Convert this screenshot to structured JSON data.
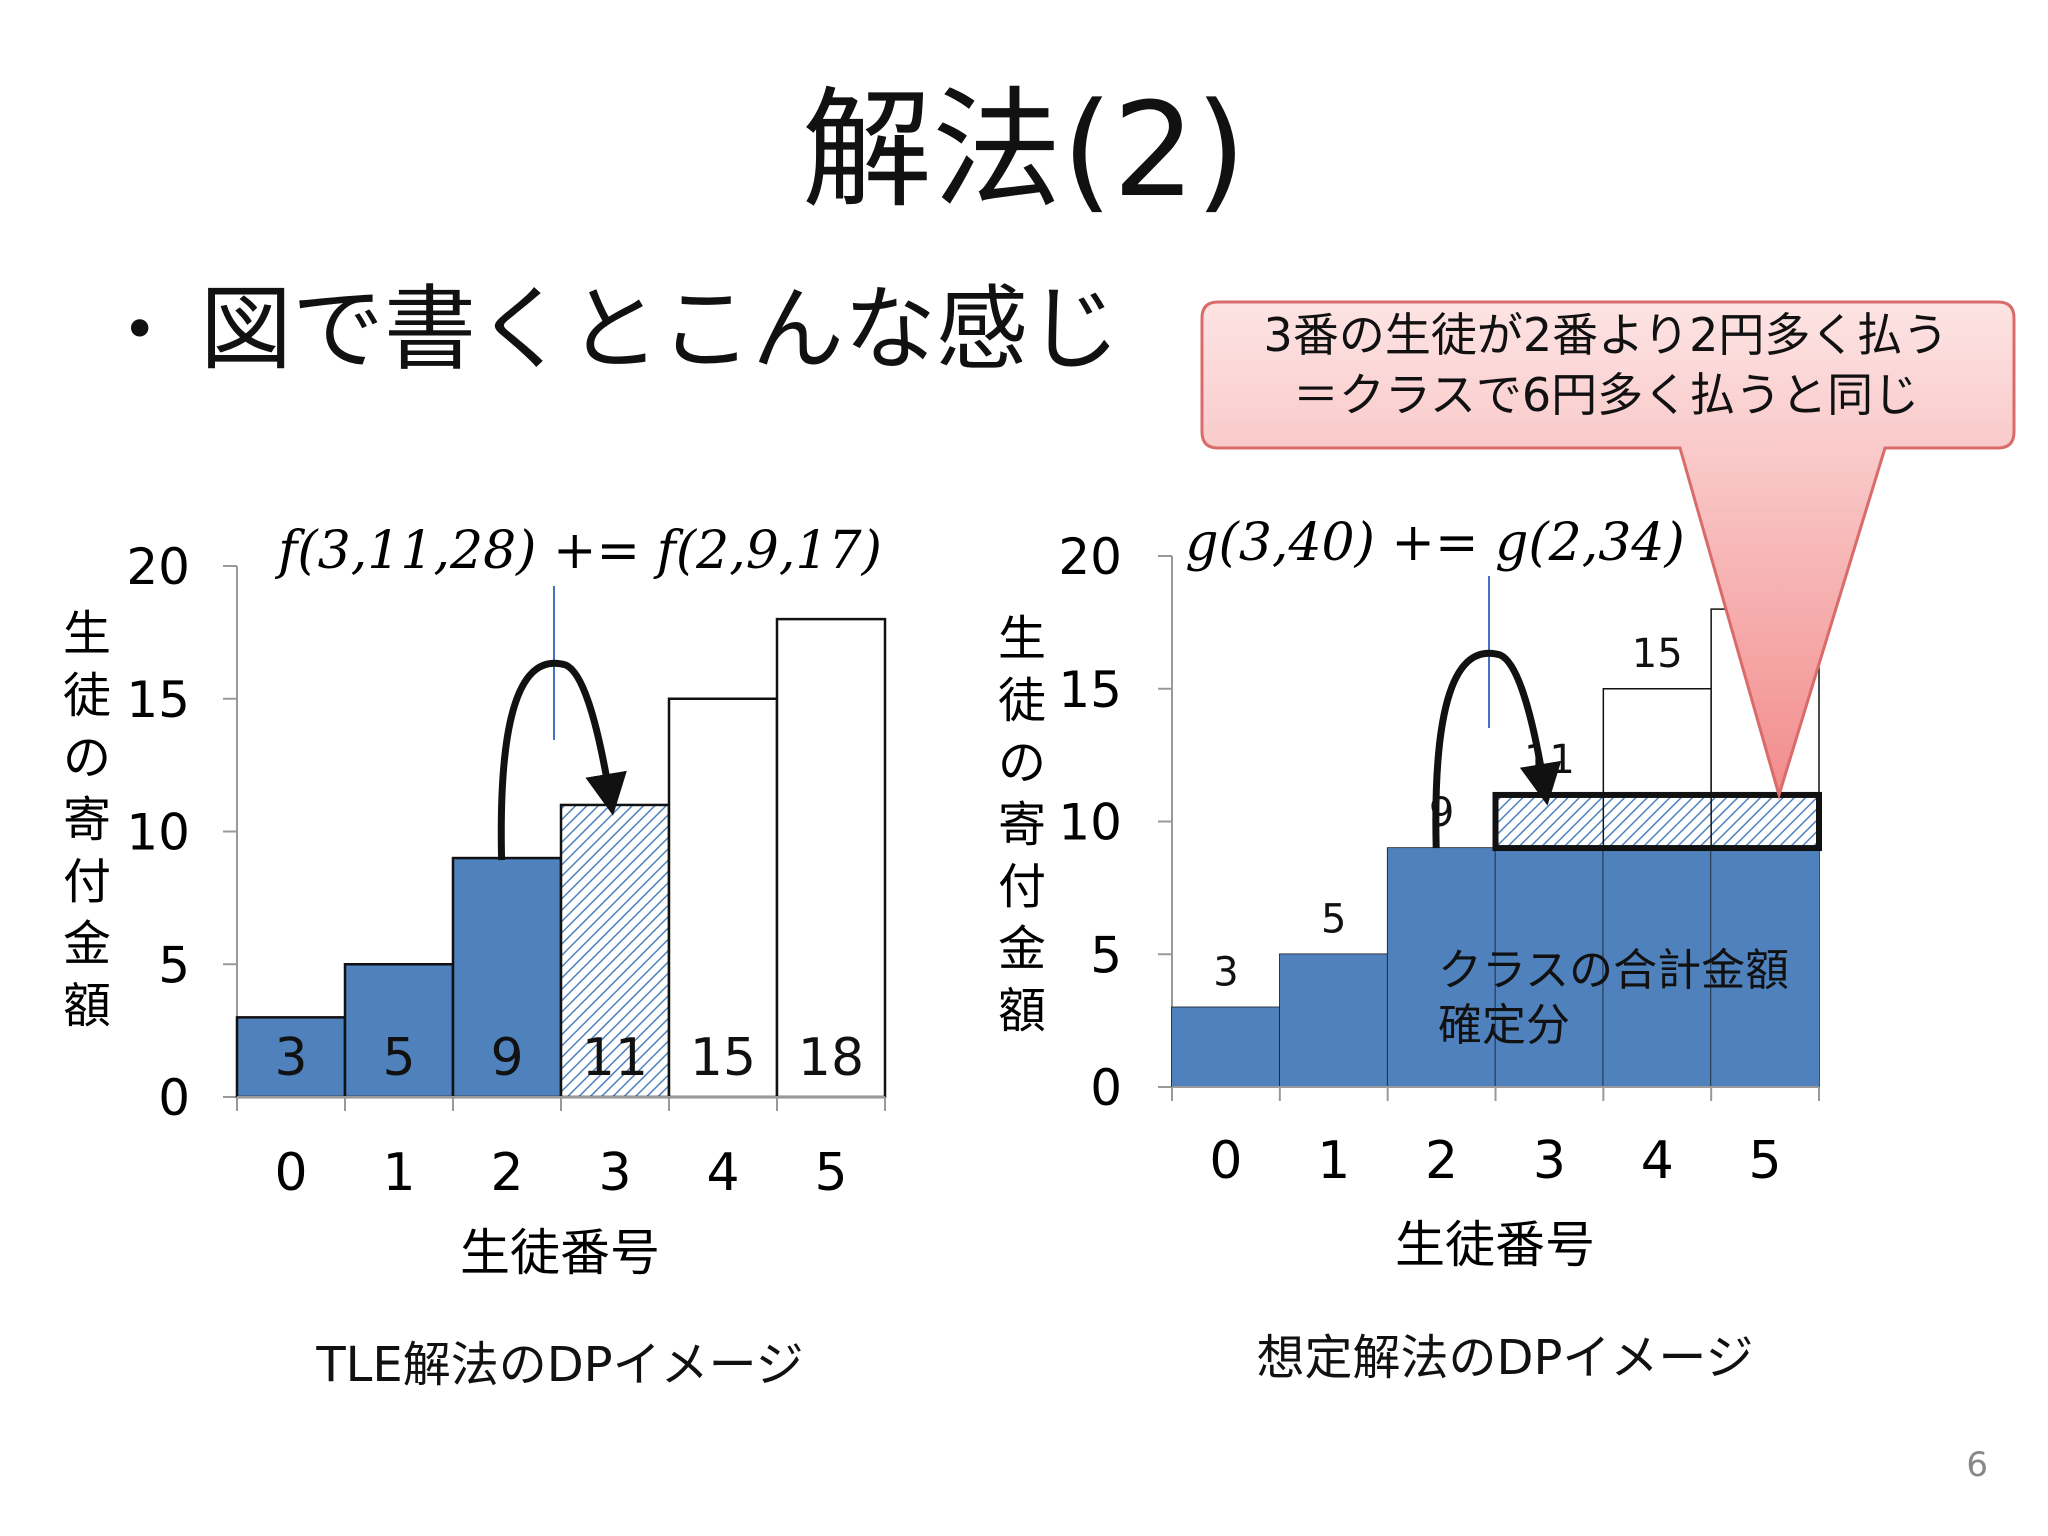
{
  "title": "解法(2)",
  "bullet": "図で書くとこんな感じ",
  "callout": {
    "line1": "3番の生徒が2番より2円多く払う",
    "line2": "＝クラスで6円多く払うと同じ"
  },
  "page_number": "6",
  "colors": {
    "bar_fill": "#4f81bd",
    "callout_fill": "#f6a9a9",
    "pointer_line": "#4472c4"
  },
  "chart_data": [
    {
      "type": "bar",
      "caption": "TLE解法のDPイメージ",
      "formula": "f(3,11,28) += f(2,9,17)",
      "ylabel": "生徒の寄付金額",
      "xlabel": "生徒番号",
      "categories": [
        "0",
        "1",
        "2",
        "3",
        "4",
        "5"
      ],
      "values": [
        3,
        5,
        9,
        11,
        15,
        18
      ],
      "value_labels": [
        "3",
        "5",
        "9",
        "11",
        "15",
        "18"
      ],
      "fill": [
        "solid",
        "solid",
        "solid",
        "hatched",
        "empty",
        "empty"
      ],
      "ylim": [
        0,
        20
      ],
      "yticks": [
        "0",
        "5",
        "10",
        "15",
        "20"
      ],
      "arrow": {
        "from": 2,
        "to": 3
      }
    },
    {
      "type": "bar",
      "caption": "想定解法のDPイメージ",
      "formula": "g(3,40) += g(2,34)",
      "ylabel": "生徒の寄付金額",
      "xlabel": "生徒番号",
      "categories": [
        "0",
        "1",
        "2",
        "3",
        "4",
        "5"
      ],
      "values": [
        3,
        5,
        9,
        11,
        15,
        18
      ],
      "value_labels": [
        "3",
        "5",
        "9",
        "11",
        "15",
        ""
      ],
      "fill": [
        "solid",
        "solid",
        "solid",
        "solid",
        "solid",
        "solid"
      ],
      "fill_cap": 9,
      "hatched_band": {
        "from_category": 3,
        "to_category": 5,
        "y0": 9,
        "y1": 11
      },
      "ylim": [
        0,
        20
      ],
      "yticks": [
        "0",
        "5",
        "10",
        "15",
        "20"
      ],
      "area_label_line1": "クラスの合計金額",
      "area_label_line2": "確定分",
      "arrow": {
        "from": 2,
        "to": 3
      }
    }
  ]
}
